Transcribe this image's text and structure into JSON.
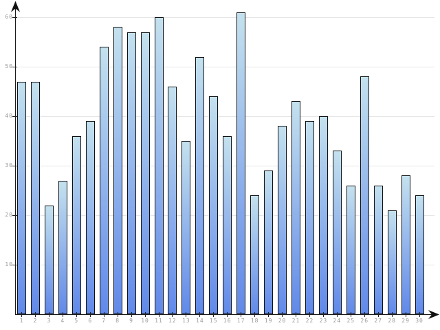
{
  "chart_data": {
    "type": "bar",
    "title": "",
    "xlabel": "",
    "ylabel": "",
    "categories": [
      "1",
      "2",
      "3",
      "4",
      "5",
      "6",
      "7",
      "8",
      "9",
      "10",
      "11",
      "12",
      "13",
      "14",
      "15",
      "16",
      "17",
      "18",
      "19",
      "20",
      "21",
      "22",
      "23",
      "24",
      "25",
      "26",
      "27",
      "28",
      "29",
      "30"
    ],
    "values": [
      47,
      47,
      22,
      27,
      36,
      39,
      54,
      58,
      57,
      57,
      60,
      46,
      35,
      52,
      44,
      36,
      61,
      24,
      29,
      38,
      43,
      39,
      40,
      33,
      26,
      48,
      26,
      21,
      28,
      24
    ],
    "y_ticks": [
      10,
      20,
      30,
      40,
      50,
      60
    ],
    "ylim": [
      0,
      62
    ],
    "grid": true,
    "legend": false,
    "colors": {
      "bar_gradient_top": "#c4e1ee",
      "bar_gradient_bottom": "#6189e9",
      "bar_border": "#111111",
      "gridline": "#e6e6e6",
      "axis": "#1a1a1a",
      "tick_label": "#999999",
      "background": "#ffffff"
    }
  }
}
